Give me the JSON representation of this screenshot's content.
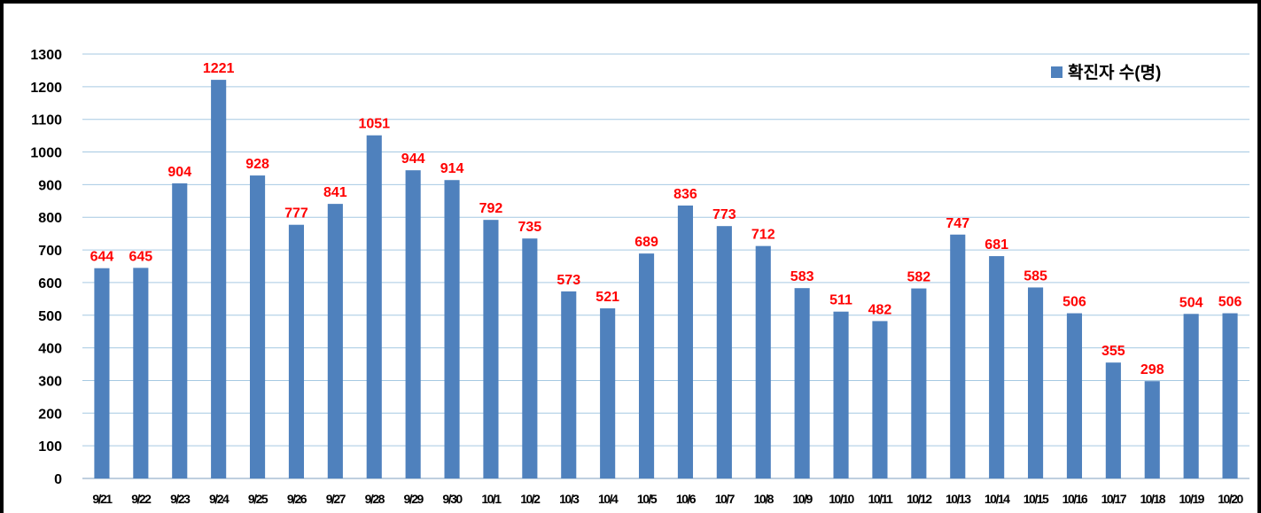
{
  "chart_data": {
    "type": "bar",
    "title": "",
    "xlabel": "",
    "ylabel": "",
    "categories": [
      "9/21",
      "9/22",
      "9/23",
      "9/24",
      "9/25",
      "9/26",
      "9/27",
      "9/28",
      "9/29",
      "9/30",
      "10/1",
      "10/2",
      "10/3",
      "10/4",
      "10/5",
      "10/6",
      "10/7",
      "10/8",
      "10/9",
      "10/10",
      "10/11",
      "10/12",
      "10/13",
      "10/14",
      "10/15",
      "10/16",
      "10/17",
      "10/18",
      "10/19",
      "10/20"
    ],
    "series": [
      {
        "name": "확진자 수(명)",
        "values": [
          644,
          645,
          904,
          1221,
          928,
          777,
          841,
          1051,
          944,
          914,
          792,
          735,
          573,
          521,
          689,
          836,
          773,
          712,
          583,
          511,
          482,
          582,
          747,
          681,
          585,
          506,
          355,
          298,
          504,
          506
        ]
      }
    ],
    "ylim": [
      0,
      1300
    ],
    "yticks": [
      0,
      100,
      200,
      300,
      400,
      500,
      600,
      700,
      800,
      900,
      1000,
      1100,
      1200,
      1300
    ],
    "grid": true,
    "legend_position": "top-right",
    "bar_color": "#4f81bd",
    "label_color": "#ff0000",
    "grid_color": "#a6c9e2"
  }
}
